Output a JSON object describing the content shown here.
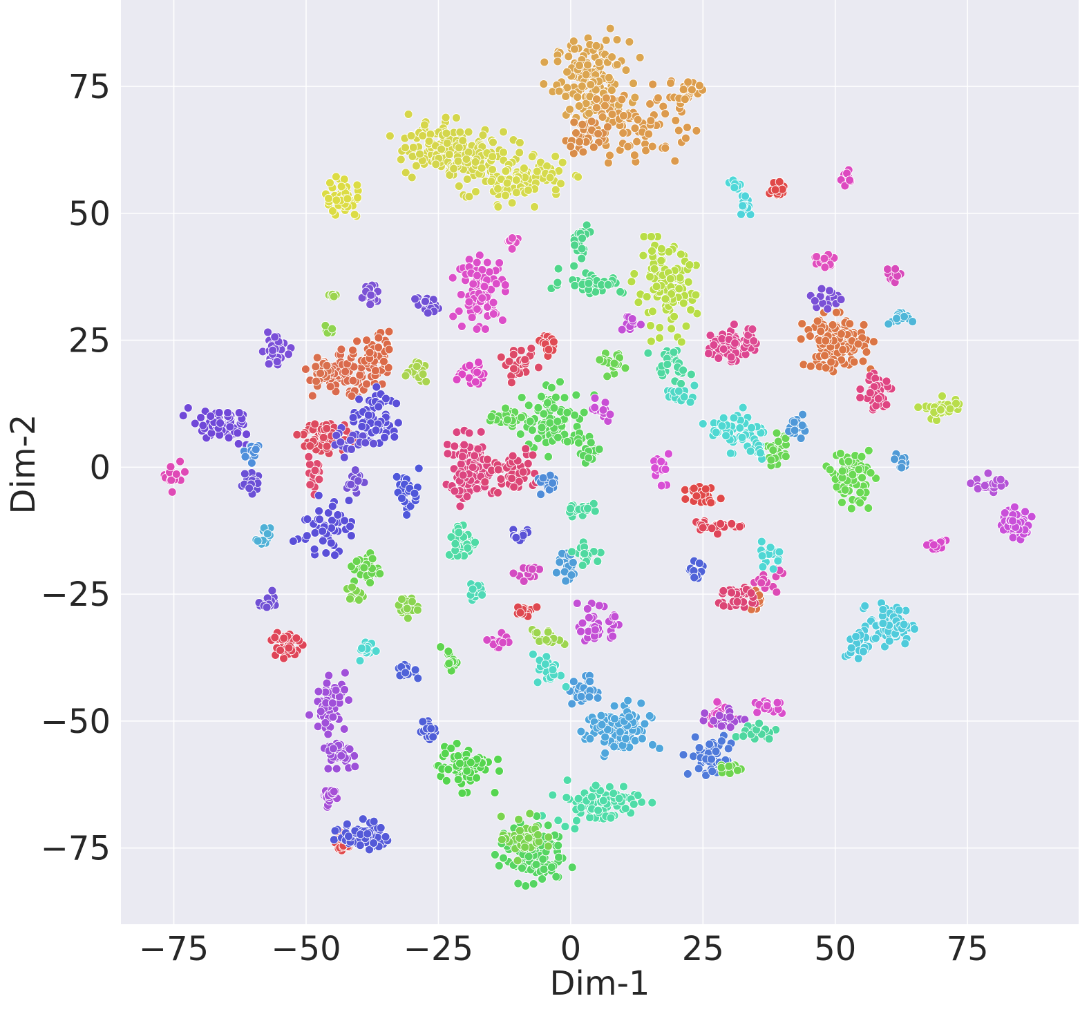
{
  "chart_data": {
    "type": "scatter",
    "title": "",
    "xlabel": "Dim-1",
    "ylabel": "Dim-2",
    "xlim": [
      -85,
      96
    ],
    "ylim": [
      -90,
      92
    ],
    "xticks": [
      -75,
      -50,
      -25,
      0,
      25,
      50,
      75
    ],
    "yticks": [
      -75,
      -50,
      -25,
      0,
      25,
      50,
      75
    ],
    "xtick_labels": [
      "−75",
      "−50",
      "−25",
      "0",
      "25",
      "50",
      "75"
    ],
    "ytick_labels": [
      "−75",
      "−50",
      "−25",
      "0",
      "25",
      "50",
      "75"
    ],
    "grid": true,
    "background": "#eaeaf2",
    "grid_color": "#ffffff",
    "marker_edge": "#ffffff",
    "legend": "none",
    "clusters": [
      {
        "cx": 4,
        "cy": 76,
        "sx": 3.5,
        "sy": 4,
        "n": 160,
        "color": "#dba550"
      },
      {
        "cx": 12,
        "cy": 68,
        "sx": 5,
        "sy": 4,
        "n": 80,
        "color": "#dc9a4d"
      },
      {
        "cx": 3,
        "cy": 65,
        "sx": 2,
        "sy": 2,
        "n": 30,
        "color": "#d98d4a"
      },
      {
        "cx": 22,
        "cy": 74,
        "sx": 1.2,
        "sy": 1.0,
        "n": 20,
        "color": "#dc9d4c"
      },
      {
        "cx": -27,
        "cy": 63,
        "sx": 3,
        "sy": 2.5,
        "n": 70,
        "color": "#d6d64a"
      },
      {
        "cx": -20,
        "cy": 61,
        "sx": 4,
        "sy": 3,
        "n": 100,
        "color": "#d3d64c"
      },
      {
        "cx": -9,
        "cy": 57,
        "sx": 4,
        "sy": 2.2,
        "n": 90,
        "color": "#d5da4c"
      },
      {
        "cx": -43,
        "cy": 53,
        "sx": 1.8,
        "sy": 2.0,
        "n": 45,
        "color": "#dcdc44"
      },
      {
        "cx": 18,
        "cy": 35,
        "sx": 2.8,
        "sy": 4,
        "n": 110,
        "color": "#b8dd46"
      },
      {
        "cx": 70,
        "cy": 11.5,
        "sx": 2,
        "sy": 1.2,
        "n": 30,
        "color": "#b8dd4b"
      },
      {
        "cx": -17,
        "cy": 35,
        "sx": 2.2,
        "sy": 3,
        "n": 90,
        "color": "#dc4ec9"
      },
      {
        "cx": -11,
        "cy": 44,
        "sx": 0.8,
        "sy": 1.0,
        "n": 12,
        "color": "#e052c4"
      },
      {
        "cx": 48.5,
        "cy": 40.5,
        "sx": 1.2,
        "sy": 1.0,
        "n": 15,
        "color": "#e04fbe"
      },
      {
        "cx": 52,
        "cy": 57,
        "sx": 0.8,
        "sy": 0.9,
        "n": 12,
        "color": "#dd49c0"
      },
      {
        "cx": 61,
        "cy": 38,
        "sx": 0.8,
        "sy": 0.8,
        "n": 10,
        "color": "#d84abb"
      },
      {
        "cx": 4,
        "cy": 36.5,
        "sx": 3,
        "sy": 1.2,
        "n": 40,
        "color": "#4fd68a"
      },
      {
        "cx": 2,
        "cy": 45,
        "sx": 0.8,
        "sy": 1.5,
        "n": 20,
        "color": "#4ed48c"
      },
      {
        "cx": -3,
        "cy": 9,
        "sx": 3,
        "sy": 3,
        "n": 100,
        "color": "#5dd65c"
      },
      {
        "cx": -12,
        "cy": 9.5,
        "sx": 2,
        "sy": 1.0,
        "n": 30,
        "color": "#63d658"
      },
      {
        "cx": 4,
        "cy": 2.5,
        "sx": 0.9,
        "sy": 0.9,
        "n": 15,
        "color": "#5bd45f"
      },
      {
        "cx": 8,
        "cy": 20.5,
        "sx": 1.4,
        "sy": 1.0,
        "n": 20,
        "color": "#6cd555"
      },
      {
        "cx": 53,
        "cy": -2,
        "sx": 1.8,
        "sy": 2.5,
        "n": 90,
        "color": "#6ad953"
      },
      {
        "cx": 39,
        "cy": 3,
        "sx": 1.0,
        "sy": 1.5,
        "n": 25,
        "color": "#69d654"
      },
      {
        "cx": -42.5,
        "cy": 18,
        "sx": 3,
        "sy": 2,
        "n": 80,
        "color": "#da6a4d"
      },
      {
        "cx": -36.5,
        "cy": 21.5,
        "sx": 1.8,
        "sy": 2.0,
        "n": 40,
        "color": "#db6a48"
      },
      {
        "cx": -47,
        "cy": 19,
        "sx": 1.0,
        "sy": 1.5,
        "n": 25,
        "color": "#d9704e"
      },
      {
        "cx": 50,
        "cy": 24.5,
        "sx": 2.8,
        "sy": 2.5,
        "n": 130,
        "color": "#db7545"
      },
      {
        "cx": 35.5,
        "cy": -26.5,
        "sx": 1.2,
        "sy": 1.0,
        "n": 15,
        "color": "#dc7347"
      },
      {
        "cx": -46,
        "cy": 6,
        "sx": 2.2,
        "sy": 1.5,
        "n": 70,
        "color": "#dd4a5e"
      },
      {
        "cx": 30,
        "cy": 24,
        "sx": 2.2,
        "sy": 1.6,
        "n": 70,
        "color": "#dd4590"
      },
      {
        "cx": 34,
        "cy": 25.5,
        "sx": 0.8,
        "sy": 1.0,
        "n": 10,
        "color": "#dd4a92"
      },
      {
        "cx": -9.5,
        "cy": 20,
        "sx": 1.4,
        "sy": 1.4,
        "n": 25,
        "color": "#dd4a68"
      },
      {
        "cx": -4,
        "cy": 24.5,
        "sx": 0.9,
        "sy": 1.0,
        "n": 15,
        "color": "#e04a54"
      },
      {
        "cx": -19,
        "cy": -0.5,
        "sx": 2.3,
        "sy": 3,
        "n": 100,
        "color": "#dc4580"
      },
      {
        "cx": -11,
        "cy": -1,
        "sx": 2,
        "sy": 2,
        "n": 50,
        "color": "#dc4575"
      },
      {
        "cx": -48.5,
        "cy": -1.5,
        "sx": 0.9,
        "sy": 1.5,
        "n": 20,
        "color": "#df4a6e"
      },
      {
        "cx": 58,
        "cy": 15,
        "sx": 1.4,
        "sy": 2.0,
        "n": 40,
        "color": "#df4582"
      },
      {
        "cx": 25,
        "cy": -5,
        "sx": 1.3,
        "sy": 1.0,
        "n": 25,
        "color": "#e04848"
      },
      {
        "cx": 27,
        "cy": -11.5,
        "sx": 2.0,
        "sy": 0.8,
        "n": 25,
        "color": "#df4559"
      },
      {
        "cx": 39,
        "cy": 55,
        "sx": 0.8,
        "sy": 0.8,
        "n": 20,
        "color": "#e04848"
      },
      {
        "cx": -9,
        "cy": -28.5,
        "sx": 1.0,
        "sy": 0.8,
        "n": 15,
        "color": "#de4750"
      },
      {
        "cx": -54,
        "cy": -35,
        "sx": 1.3,
        "sy": 1.5,
        "n": 40,
        "color": "#df4558"
      },
      {
        "cx": -43.5,
        "cy": -74,
        "sx": 1.2,
        "sy": 1.0,
        "n": 20,
        "color": "#e0484a"
      },
      {
        "cx": 32,
        "cy": -25.5,
        "sx": 2.2,
        "sy": 1.2,
        "n": 30,
        "color": "#dc4575"
      },
      {
        "cx": -19,
        "cy": 18,
        "sx": 1.2,
        "sy": 1.5,
        "n": 20,
        "color": "#dd47c4"
      },
      {
        "cx": 17.5,
        "cy": 0,
        "sx": 1.0,
        "sy": 1.4,
        "n": 20,
        "color": "#d84fd5"
      },
      {
        "cx": 12,
        "cy": 28.5,
        "sx": 1.0,
        "sy": 1.0,
        "n": 15,
        "color": "#c24fd6"
      },
      {
        "cx": 6,
        "cy": 11,
        "sx": 0.9,
        "sy": 1.0,
        "n": 15,
        "color": "#c94fd5"
      },
      {
        "cx": 5,
        "cy": -31.5,
        "sx": 1.6,
        "sy": 1.8,
        "n": 40,
        "color": "#c34fd5"
      },
      {
        "cx": 37,
        "cy": -22,
        "sx": 1.3,
        "sy": 1.0,
        "n": 15,
        "color": "#dd4ab5"
      },
      {
        "cx": 28,
        "cy": -48.5,
        "sx": 1.6,
        "sy": 1.0,
        "n": 20,
        "color": "#de4bc4"
      },
      {
        "cx": 37,
        "cy": -47,
        "sx": 1.5,
        "sy": 0.8,
        "n": 15,
        "color": "#d94dcb"
      },
      {
        "cx": -13.5,
        "cy": -34.5,
        "sx": 1.0,
        "sy": 0.8,
        "n": 12,
        "color": "#d84cc6"
      },
      {
        "cx": -8,
        "cy": -20.5,
        "sx": 1.2,
        "sy": 0.8,
        "n": 15,
        "color": "#d34cc2"
      },
      {
        "cx": -75,
        "cy": -2,
        "sx": 0.8,
        "sy": 1.2,
        "n": 20,
        "color": "#df4ab6"
      },
      {
        "cx": 69.5,
        "cy": -15.5,
        "sx": 0.9,
        "sy": 0.8,
        "n": 15,
        "color": "#d84acb"
      },
      {
        "cx": 83.5,
        "cy": -11,
        "sx": 1.8,
        "sy": 1.4,
        "n": 50,
        "color": "#c94fd9"
      },
      {
        "cx": 79.5,
        "cy": -3.5,
        "sx": 1.5,
        "sy": 0.9,
        "n": 25,
        "color": "#b454d7"
      },
      {
        "cx": -45.5,
        "cy": -47,
        "sx": 1.5,
        "sy": 2.5,
        "n": 60,
        "color": "#a050d9"
      },
      {
        "cx": -44,
        "cy": -56,
        "sx": 1.4,
        "sy": 1.3,
        "n": 35,
        "color": "#9c50d8"
      },
      {
        "cx": -45.5,
        "cy": -65,
        "sx": 1.0,
        "sy": 1.0,
        "n": 25,
        "color": "#a64fd6"
      },
      {
        "cx": 29,
        "cy": -49.5,
        "sx": 1.5,
        "sy": 1.0,
        "n": 20,
        "color": "#a44fd5"
      },
      {
        "cx": -56,
        "cy": 23,
        "sx": 1.2,
        "sy": 1.4,
        "n": 35,
        "color": "#7a4fd8"
      },
      {
        "cx": -66,
        "cy": 8,
        "sx": 3,
        "sy": 1.6,
        "n": 60,
        "color": "#7048d8"
      },
      {
        "cx": -38,
        "cy": 34,
        "sx": 0.8,
        "sy": 1.0,
        "n": 15,
        "color": "#7c52d5"
      },
      {
        "cx": -27,
        "cy": 32,
        "sx": 1.0,
        "sy": 1.0,
        "n": 20,
        "color": "#7050d5"
      },
      {
        "cx": -60.5,
        "cy": -3,
        "sx": 0.9,
        "sy": 1.0,
        "n": 20,
        "color": "#6b50d6"
      },
      {
        "cx": -41,
        "cy": -3,
        "sx": 0.8,
        "sy": 1.0,
        "n": 15,
        "color": "#7552d5"
      },
      {
        "cx": -47,
        "cy": -12,
        "sx": 2.5,
        "sy": 2.5,
        "n": 45,
        "color": "#5a4fd8"
      },
      {
        "cx": -36.5,
        "cy": 10,
        "sx": 2.0,
        "sy": 3.0,
        "n": 55,
        "color": "#5a4fd8"
      },
      {
        "cx": -41,
        "cy": 5,
        "sx": 2.0,
        "sy": 1.2,
        "n": 20,
        "color": "#6552d7"
      },
      {
        "cx": -31,
        "cy": -5,
        "sx": 1.2,
        "sy": 2.0,
        "n": 30,
        "color": "#4f57da"
      },
      {
        "cx": -57,
        "cy": -26,
        "sx": 0.8,
        "sy": 1.0,
        "n": 15,
        "color": "#7050d4"
      },
      {
        "cx": -9.5,
        "cy": -13.5,
        "sx": 1.0,
        "sy": 0.8,
        "n": 12,
        "color": "#5a52d6"
      },
      {
        "cx": 48.5,
        "cy": 33,
        "sx": 1.4,
        "sy": 1.2,
        "n": 15,
        "color": "#7a50d6"
      },
      {
        "cx": -39,
        "cy": -72.5,
        "sx": 2.2,
        "sy": 1.3,
        "n": 70,
        "color": "#5459d8"
      },
      {
        "cx": 24,
        "cy": -20.5,
        "sx": 0.9,
        "sy": 0.9,
        "n": 15,
        "color": "#4f62d8"
      },
      {
        "cx": -31,
        "cy": -40,
        "sx": 0.9,
        "sy": 0.9,
        "n": 15,
        "color": "#4f62d8"
      },
      {
        "cx": -27,
        "cy": -52,
        "sx": 1.0,
        "sy": 1.0,
        "n": 20,
        "color": "#4f5ed7"
      },
      {
        "cx": 26.5,
        "cy": -57,
        "sx": 2.0,
        "sy": 2.0,
        "n": 55,
        "color": "#4f7ada"
      },
      {
        "cx": -60,
        "cy": 3,
        "sx": 0.9,
        "sy": 0.9,
        "n": 15,
        "color": "#4f8fdb"
      },
      {
        "cx": 43,
        "cy": 8,
        "sx": 1.0,
        "sy": 1.0,
        "n": 20,
        "color": "#4f98d8"
      },
      {
        "cx": 62.5,
        "cy": 1,
        "sx": 0.6,
        "sy": 1.0,
        "n": 12,
        "color": "#4f9ad6"
      },
      {
        "cx": -4.5,
        "cy": -3.5,
        "sx": 0.9,
        "sy": 1.0,
        "n": 15,
        "color": "#4f8cd8"
      },
      {
        "cx": -0.5,
        "cy": -19.5,
        "sx": 1.0,
        "sy": 1.4,
        "n": 20,
        "color": "#4f9dd8"
      },
      {
        "cx": 9,
        "cy": -52,
        "sx": 3.0,
        "sy": 2.5,
        "n": 110,
        "color": "#4fa6dc"
      },
      {
        "cx": 2,
        "cy": -44,
        "sx": 1.2,
        "sy": 1.4,
        "n": 30,
        "color": "#4f9ddb"
      },
      {
        "cx": 62,
        "cy": 29,
        "sx": 1.0,
        "sy": 0.8,
        "n": 15,
        "color": "#4fb6d8"
      },
      {
        "cx": -58,
        "cy": -14,
        "sx": 0.6,
        "sy": 1.0,
        "n": 15,
        "color": "#4fb0d6"
      },
      {
        "cx": 60.5,
        "cy": -31,
        "sx": 2.0,
        "sy": 2.0,
        "n": 70,
        "color": "#4fcbdb"
      },
      {
        "cx": 54.5,
        "cy": -35,
        "sx": 1.0,
        "sy": 1.5,
        "n": 25,
        "color": "#4fc9db"
      },
      {
        "cx": 31.5,
        "cy": 7.5,
        "sx": 2.5,
        "sy": 2.0,
        "n": 45,
        "color": "#4fd8d2"
      },
      {
        "cx": 35,
        "cy": 3.5,
        "sx": 1.0,
        "sy": 1.0,
        "n": 15,
        "color": "#4fd6cf"
      },
      {
        "cx": 33,
        "cy": 52,
        "sx": 0.7,
        "sy": 1.3,
        "n": 18,
        "color": "#4fd4da"
      },
      {
        "cx": 31,
        "cy": 55.5,
        "sx": 0.6,
        "sy": 0.6,
        "n": 10,
        "color": "#4fd8d8"
      },
      {
        "cx": 38,
        "cy": -17,
        "sx": 1.0,
        "sy": 1.2,
        "n": 20,
        "color": "#4fd7d4"
      },
      {
        "cx": -38.5,
        "cy": -36,
        "sx": 0.8,
        "sy": 1.0,
        "n": 15,
        "color": "#4fd8d0"
      },
      {
        "cx": -4,
        "cy": -40,
        "sx": 1.2,
        "sy": 1.5,
        "n": 25,
        "color": "#4fd9c6"
      },
      {
        "cx": -20.5,
        "cy": -14.5,
        "sx": 1.4,
        "sy": 1.8,
        "n": 40,
        "color": "#4fdba5"
      },
      {
        "cx": 1.5,
        "cy": -8,
        "sx": 1.2,
        "sy": 0.8,
        "n": 20,
        "color": "#4fd9a0"
      },
      {
        "cx": 3,
        "cy": -17,
        "sx": 1.2,
        "sy": 0.9,
        "n": 20,
        "color": "#4fd9a0"
      },
      {
        "cx": -18,
        "cy": -24.5,
        "sx": 0.8,
        "sy": 0.8,
        "n": 15,
        "color": "#4fd9b6"
      },
      {
        "cx": 5,
        "cy": -66,
        "sx": 4.0,
        "sy": 2.0,
        "n": 80,
        "color": "#4fdca8"
      },
      {
        "cx": 19,
        "cy": 20,
        "sx": 1.8,
        "sy": 1.6,
        "n": 25,
        "color": "#4fd8a0"
      },
      {
        "cx": 21,
        "cy": 14,
        "sx": 1.5,
        "sy": 0.8,
        "n": 15,
        "color": "#4fd8c6"
      },
      {
        "cx": 35,
        "cy": -52,
        "sx": 2.0,
        "sy": 1.0,
        "n": 20,
        "color": "#4fd7a0"
      },
      {
        "cx": -38.5,
        "cy": -20,
        "sx": 1.2,
        "sy": 1.5,
        "n": 35,
        "color": "#69d44f"
      },
      {
        "cx": -41,
        "cy": -25,
        "sx": 0.7,
        "sy": 0.8,
        "n": 12,
        "color": "#7fd44f"
      },
      {
        "cx": -31,
        "cy": -27.5,
        "sx": 1.0,
        "sy": 1.0,
        "n": 20,
        "color": "#8ad450"
      },
      {
        "cx": -23,
        "cy": -38,
        "sx": 0.8,
        "sy": 1.0,
        "n": 15,
        "color": "#5fd44f"
      },
      {
        "cx": -20,
        "cy": -59,
        "sx": 2.5,
        "sy": 2.0,
        "n": 70,
        "color": "#55d54f"
      },
      {
        "cx": -7.5,
        "cy": -76,
        "sx": 3.0,
        "sy": 2.8,
        "n": 120,
        "color": "#55d562"
      },
      {
        "cx": -9,
        "cy": -73,
        "sx": 2.0,
        "sy": 2.0,
        "n": 40,
        "color": "#7ad44f"
      },
      {
        "cx": -4.5,
        "cy": -33.5,
        "sx": 1.4,
        "sy": 0.8,
        "n": 15,
        "color": "#9dd54f"
      },
      {
        "cx": 30,
        "cy": -59,
        "sx": 1.0,
        "sy": 1.0,
        "n": 15,
        "color": "#6ed44f"
      },
      {
        "cx": -45,
        "cy": 34,
        "sx": 0.5,
        "sy": 0.5,
        "n": 6,
        "color": "#9cd44f"
      },
      {
        "cx": -46,
        "cy": 27,
        "sx": 0.6,
        "sy": 0.6,
        "n": 6,
        "color": "#8fd44f"
      },
      {
        "cx": -29,
        "cy": 18.5,
        "sx": 1.0,
        "sy": 1.0,
        "n": 15,
        "color": "#a9d44f"
      }
    ]
  }
}
